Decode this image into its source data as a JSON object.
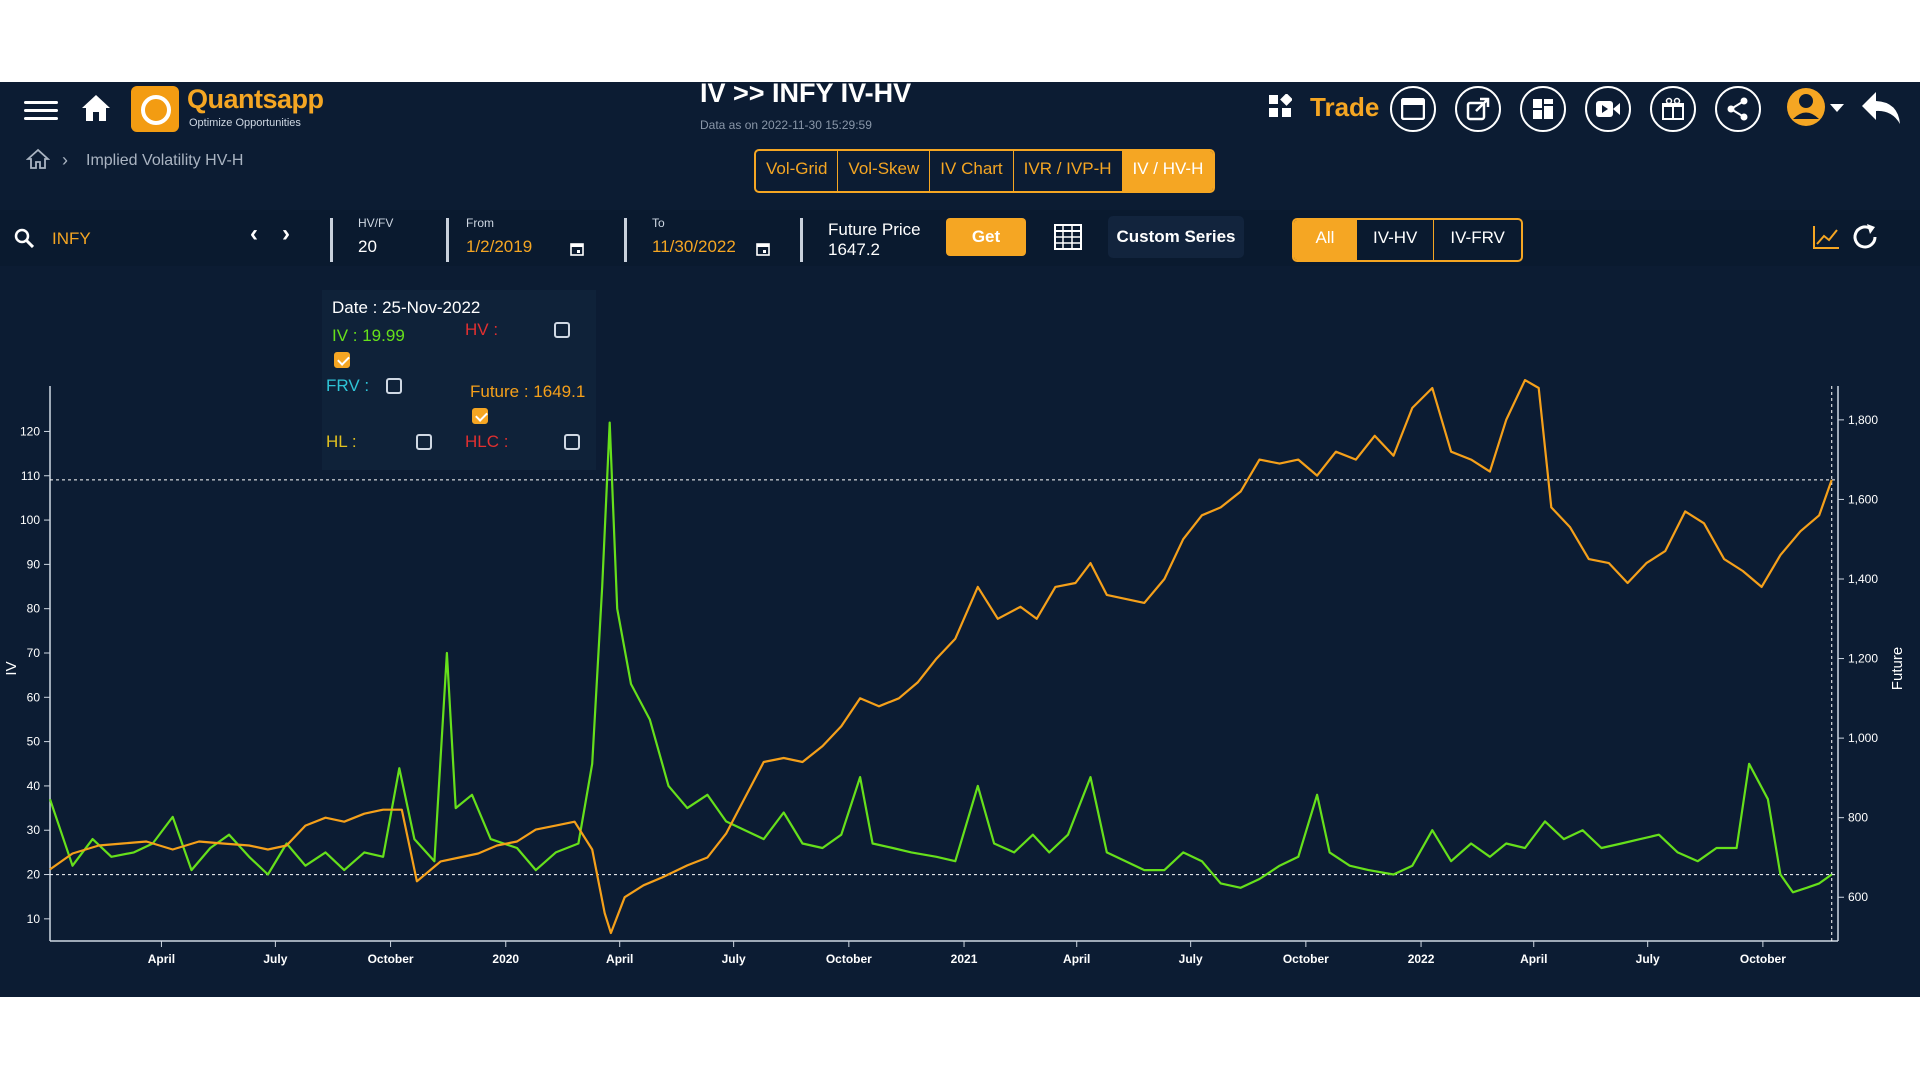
{
  "header": {
    "brand": "Quantsapp",
    "tagline": "Optimize Opportunities",
    "title": "IV >> INFY IV-HV",
    "subtitle": "Data as on 2022-11-30 15:29:59",
    "trade_label": "Trade"
  },
  "breadcrumb": {
    "label": "Implied Volatility HV-H"
  },
  "tabs": [
    {
      "label": "Vol-Grid",
      "active": false
    },
    {
      "label": "Vol-Skew",
      "active": false
    },
    {
      "label": "IV Chart",
      "active": false
    },
    {
      "label": "IVR / IVP-H",
      "active": false
    },
    {
      "label": "IV / HV-H",
      "active": true
    }
  ],
  "toolbar": {
    "symbol": "INFY",
    "hvfv_label": "HV/FV",
    "hvfv_value": "20",
    "from_label": "From",
    "from_value": "1/2/2019",
    "to_label": "To",
    "to_value": "11/30/2022",
    "future_label": "Future Price",
    "future_value": "1647.2",
    "get_label": "Get",
    "custom_label": "Custom Series",
    "segments": [
      {
        "label": "All",
        "active": true
      },
      {
        "label": "IV-HV",
        "active": false
      },
      {
        "label": "IV-FRV",
        "active": false
      }
    ]
  },
  "tooltip": {
    "date": "Date : 25-Nov-2022",
    "iv": "IV : 19.99",
    "hv": "HV :",
    "frv": "FRV :",
    "future": "Future : 1649.1",
    "hl": "HL :",
    "hlc": "HLC :"
  },
  "colors": {
    "iv": "#66e01b",
    "future": "#f5a01a",
    "hv": "#e03030",
    "frv": "#2ec4d6",
    "hl": "#e0c020",
    "accent": "#f5a623",
    "background": "#0c1c33"
  },
  "chart_data": {
    "type": "line",
    "x_start": "2019-01-02",
    "x_end": "2022-11-30",
    "x_tick_labels": [
      "April",
      "July",
      "October",
      "2020",
      "April",
      "July",
      "October",
      "2021",
      "April",
      "July",
      "October",
      "2022",
      "April",
      "July",
      "October"
    ],
    "ylabel_left": "IV",
    "ylabel_right": "Future",
    "ylim_left": [
      5,
      128
    ],
    "ylim_right": [
      490,
      1860
    ],
    "y_ticks_left": [
      10,
      20,
      30,
      40,
      50,
      60,
      70,
      80,
      90,
      100,
      110,
      120
    ],
    "y_ticks_right": [
      600,
      800,
      1000,
      1200,
      1400,
      1600,
      1800
    ],
    "crosshair": {
      "date": "2022-11-25",
      "iv": 19.99,
      "future": 1649.1
    },
    "series": [
      {
        "name": "IV",
        "axis": "left",
        "points": [
          [
            "2019-01-02",
            37
          ],
          [
            "2019-01-20",
            22
          ],
          [
            "2019-02-05",
            28
          ],
          [
            "2019-02-20",
            24
          ],
          [
            "2019-03-10",
            25
          ],
          [
            "2019-03-25",
            27
          ],
          [
            "2019-04-10",
            33
          ],
          [
            "2019-04-25",
            21
          ],
          [
            "2019-05-10",
            26
          ],
          [
            "2019-05-25",
            29
          ],
          [
            "2019-06-10",
            24
          ],
          [
            "2019-06-25",
            20
          ],
          [
            "2019-07-10",
            27
          ],
          [
            "2019-07-25",
            22
          ],
          [
            "2019-08-10",
            25
          ],
          [
            "2019-08-25",
            21
          ],
          [
            "2019-09-10",
            25
          ],
          [
            "2019-09-25",
            24
          ],
          [
            "2019-10-08",
            44
          ],
          [
            "2019-10-20",
            28
          ],
          [
            "2019-11-05",
            23
          ],
          [
            "2019-11-15",
            70
          ],
          [
            "2019-11-22",
            35
          ],
          [
            "2019-12-05",
            38
          ],
          [
            "2019-12-20",
            28
          ],
          [
            "2020-01-10",
            26
          ],
          [
            "2020-01-25",
            21
          ],
          [
            "2020-02-10",
            25
          ],
          [
            "2020-02-28",
            27
          ],
          [
            "2020-03-10",
            45
          ],
          [
            "2020-03-18",
            85
          ],
          [
            "2020-03-24",
            122
          ],
          [
            "2020-03-30",
            80
          ],
          [
            "2020-04-10",
            63
          ],
          [
            "2020-04-25",
            55
          ],
          [
            "2020-05-10",
            40
          ],
          [
            "2020-05-25",
            35
          ],
          [
            "2020-06-10",
            38
          ],
          [
            "2020-06-25",
            32
          ],
          [
            "2020-07-10",
            30
          ],
          [
            "2020-07-25",
            28
          ],
          [
            "2020-08-10",
            34
          ],
          [
            "2020-08-25",
            27
          ],
          [
            "2020-09-10",
            26
          ],
          [
            "2020-09-25",
            29
          ],
          [
            "2020-10-10",
            42
          ],
          [
            "2020-10-20",
            27
          ],
          [
            "2020-11-05",
            26
          ],
          [
            "2020-11-20",
            25
          ],
          [
            "2020-12-10",
            24
          ],
          [
            "2020-12-25",
            23
          ],
          [
            "2021-01-12",
            40
          ],
          [
            "2021-01-25",
            27
          ],
          [
            "2021-02-10",
            25
          ],
          [
            "2021-02-25",
            29
          ],
          [
            "2021-03-10",
            25
          ],
          [
            "2021-03-25",
            29
          ],
          [
            "2021-04-12",
            42
          ],
          [
            "2021-04-25",
            25
          ],
          [
            "2021-05-10",
            23
          ],
          [
            "2021-05-25",
            21
          ],
          [
            "2021-06-10",
            21
          ],
          [
            "2021-06-25",
            25
          ],
          [
            "2021-07-10",
            23
          ],
          [
            "2021-07-25",
            18
          ],
          [
            "2021-08-10",
            17
          ],
          [
            "2021-08-25",
            19
          ],
          [
            "2021-09-10",
            22
          ],
          [
            "2021-09-25",
            24
          ],
          [
            "2021-10-10",
            38
          ],
          [
            "2021-10-20",
            25
          ],
          [
            "2021-11-05",
            22
          ],
          [
            "2021-11-20",
            21
          ],
          [
            "2021-12-10",
            20
          ],
          [
            "2021-12-25",
            22
          ],
          [
            "2022-01-10",
            30
          ],
          [
            "2022-01-25",
            23
          ],
          [
            "2022-02-10",
            27
          ],
          [
            "2022-02-25",
            24
          ],
          [
            "2022-03-10",
            27
          ],
          [
            "2022-03-25",
            26
          ],
          [
            "2022-04-10",
            32
          ],
          [
            "2022-04-25",
            28
          ],
          [
            "2022-05-10",
            30
          ],
          [
            "2022-05-25",
            26
          ],
          [
            "2022-06-10",
            27
          ],
          [
            "2022-06-25",
            28
          ],
          [
            "2022-07-10",
            29
          ],
          [
            "2022-07-25",
            25
          ],
          [
            "2022-08-10",
            23
          ],
          [
            "2022-08-25",
            26
          ],
          [
            "2022-09-10",
            26
          ],
          [
            "2022-09-20",
            45
          ],
          [
            "2022-10-05",
            37
          ],
          [
            "2022-10-15",
            20
          ],
          [
            "2022-10-25",
            16
          ],
          [
            "2022-11-05",
            17
          ],
          [
            "2022-11-15",
            18
          ],
          [
            "2022-11-25",
            20
          ]
        ]
      },
      {
        "name": "Future",
        "axis": "right",
        "points": [
          [
            "2019-01-02",
            670
          ],
          [
            "2019-01-20",
            710
          ],
          [
            "2019-02-10",
            730
          ],
          [
            "2019-03-01",
            735
          ],
          [
            "2019-03-20",
            740
          ],
          [
            "2019-04-10",
            720
          ],
          [
            "2019-05-01",
            740
          ],
          [
            "2019-05-20",
            735
          ],
          [
            "2019-06-10",
            730
          ],
          [
            "2019-06-25",
            720
          ],
          [
            "2019-07-10",
            730
          ],
          [
            "2019-07-25",
            780
          ],
          [
            "2019-08-10",
            800
          ],
          [
            "2019-08-25",
            790
          ],
          [
            "2019-09-10",
            810
          ],
          [
            "2019-09-25",
            820
          ],
          [
            "2019-10-10",
            820
          ],
          [
            "2019-10-22",
            640
          ],
          [
            "2019-11-10",
            690
          ],
          [
            "2019-11-25",
            700
          ],
          [
            "2019-12-10",
            710
          ],
          [
            "2019-12-25",
            730
          ],
          [
            "2020-01-10",
            740
          ],
          [
            "2020-01-25",
            770
          ],
          [
            "2020-02-10",
            780
          ],
          [
            "2020-02-25",
            790
          ],
          [
            "2020-03-10",
            720
          ],
          [
            "2020-03-20",
            560
          ],
          [
            "2020-03-25",
            510
          ],
          [
            "2020-04-05",
            600
          ],
          [
            "2020-04-20",
            630
          ],
          [
            "2020-05-05",
            650
          ],
          [
            "2020-05-25",
            680
          ],
          [
            "2020-06-10",
            700
          ],
          [
            "2020-06-25",
            760
          ],
          [
            "2020-07-10",
            850
          ],
          [
            "2020-07-25",
            940
          ],
          [
            "2020-08-10",
            950
          ],
          [
            "2020-08-25",
            940
          ],
          [
            "2020-09-10",
            980
          ],
          [
            "2020-09-25",
            1030
          ],
          [
            "2020-10-10",
            1100
          ],
          [
            "2020-10-25",
            1080
          ],
          [
            "2020-11-10",
            1100
          ],
          [
            "2020-11-25",
            1140
          ],
          [
            "2020-12-10",
            1200
          ],
          [
            "2020-12-25",
            1250
          ],
          [
            "2021-01-12",
            1380
          ],
          [
            "2021-01-28",
            1300
          ],
          [
            "2021-02-15",
            1330
          ],
          [
            "2021-02-28",
            1300
          ],
          [
            "2021-03-15",
            1380
          ],
          [
            "2021-03-31",
            1390
          ],
          [
            "2021-04-12",
            1440
          ],
          [
            "2021-04-25",
            1360
          ],
          [
            "2021-05-10",
            1350
          ],
          [
            "2021-05-25",
            1340
          ],
          [
            "2021-06-10",
            1400
          ],
          [
            "2021-06-25",
            1500
          ],
          [
            "2021-07-10",
            1560
          ],
          [
            "2021-07-25",
            1580
          ],
          [
            "2021-08-10",
            1620
          ],
          [
            "2021-08-25",
            1700
          ],
          [
            "2021-09-10",
            1690
          ],
          [
            "2021-09-25",
            1700
          ],
          [
            "2021-10-10",
            1660
          ],
          [
            "2021-10-25",
            1720
          ],
          [
            "2021-11-10",
            1700
          ],
          [
            "2021-11-25",
            1760
          ],
          [
            "2021-12-10",
            1710
          ],
          [
            "2021-12-25",
            1830
          ],
          [
            "2022-01-10",
            1880
          ],
          [
            "2022-01-25",
            1720
          ],
          [
            "2022-02-10",
            1700
          ],
          [
            "2022-02-25",
            1670
          ],
          [
            "2022-03-10",
            1800
          ],
          [
            "2022-03-25",
            1900
          ],
          [
            "2022-04-05",
            1880
          ],
          [
            "2022-04-15",
            1580
          ],
          [
            "2022-04-30",
            1530
          ],
          [
            "2022-05-15",
            1450
          ],
          [
            "2022-05-31",
            1440
          ],
          [
            "2022-06-15",
            1390
          ],
          [
            "2022-06-30",
            1440
          ],
          [
            "2022-07-15",
            1470
          ],
          [
            "2022-07-31",
            1570
          ],
          [
            "2022-08-15",
            1540
          ],
          [
            "2022-08-31",
            1450
          ],
          [
            "2022-09-15",
            1420
          ],
          [
            "2022-09-30",
            1380
          ],
          [
            "2022-10-15",
            1460
          ],
          [
            "2022-10-31",
            1520
          ],
          [
            "2022-11-15",
            1560
          ],
          [
            "2022-11-25",
            1649
          ]
        ]
      }
    ]
  }
}
